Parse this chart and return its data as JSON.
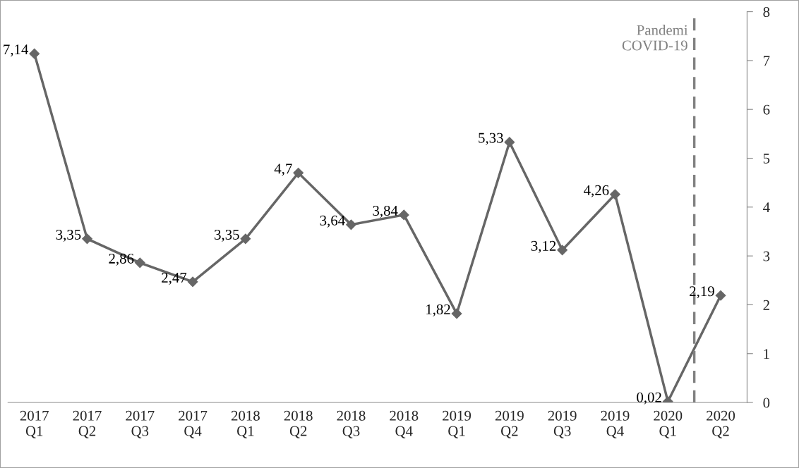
{
  "chart_data": {
    "type": "line",
    "categories": [
      "2017\nQ1",
      "2017\nQ2",
      "2017\nQ3",
      "2017\nQ4",
      "2018\nQ1",
      "2018\nQ2",
      "2018\nQ3",
      "2018\nQ4",
      "2019\nQ1",
      "2019\nQ2",
      "2019\nQ3",
      "2019\nQ4",
      "2020\nQ1",
      "2020\nQ2"
    ],
    "series": [
      {
        "color": "#666666",
        "values": [
          7.14,
          3.35,
          2.86,
          2.47,
          3.35,
          4.7,
          3.64,
          3.84,
          1.82,
          5.33,
          3.12,
          4.26,
          0.02,
          2.19
        ],
        "value_labels": [
          "7,14",
          "3,35",
          "2,86",
          "2,47",
          "3,35",
          "4,7",
          "3,64",
          "3,84",
          "1,82",
          "5,33",
          "3,12",
          "4,26",
          "0,02",
          "2,19"
        ]
      }
    ],
    "ylim": [
      0,
      8
    ],
    "yticks": [
      0,
      1,
      2,
      3,
      4,
      5,
      6,
      7,
      8
    ],
    "marker": "diamond",
    "line_style": "solid",
    "grid": false,
    "annotations": [
      "Pandemi\nCOVID-19"
    ]
  }
}
